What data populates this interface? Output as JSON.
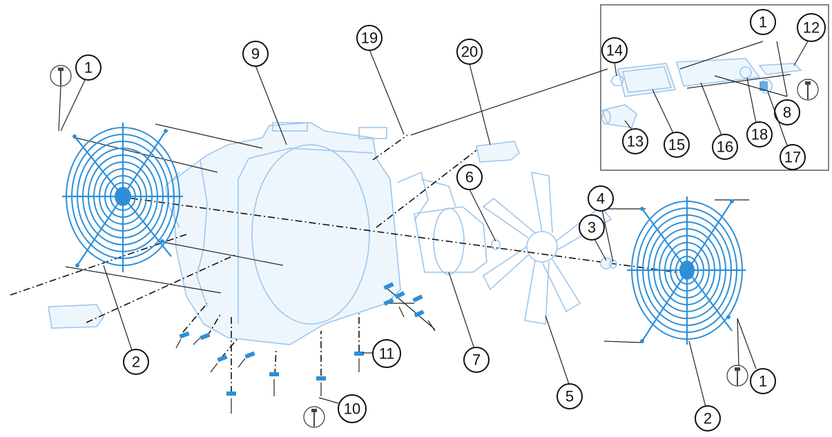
{
  "diagram": {
    "type": "exploded-parts-view",
    "accent_color": "#2e8fd8",
    "housing_color": "#9cc6ec",
    "callouts": {
      "c1a": "1",
      "c1b": "1",
      "c1c": "1",
      "c2a": "2",
      "c2b": "2",
      "c3": "3",
      "c4": "4",
      "c5": "5",
      "c6": "6",
      "c7": "7",
      "c8": "8",
      "c9": "9",
      "c10": "10",
      "c11": "11",
      "c12": "12",
      "c13": "13",
      "c14": "14",
      "c15": "15",
      "c16": "16",
      "c17": "17",
      "c18": "18",
      "c19": "19",
      "c20": "20"
    }
  }
}
